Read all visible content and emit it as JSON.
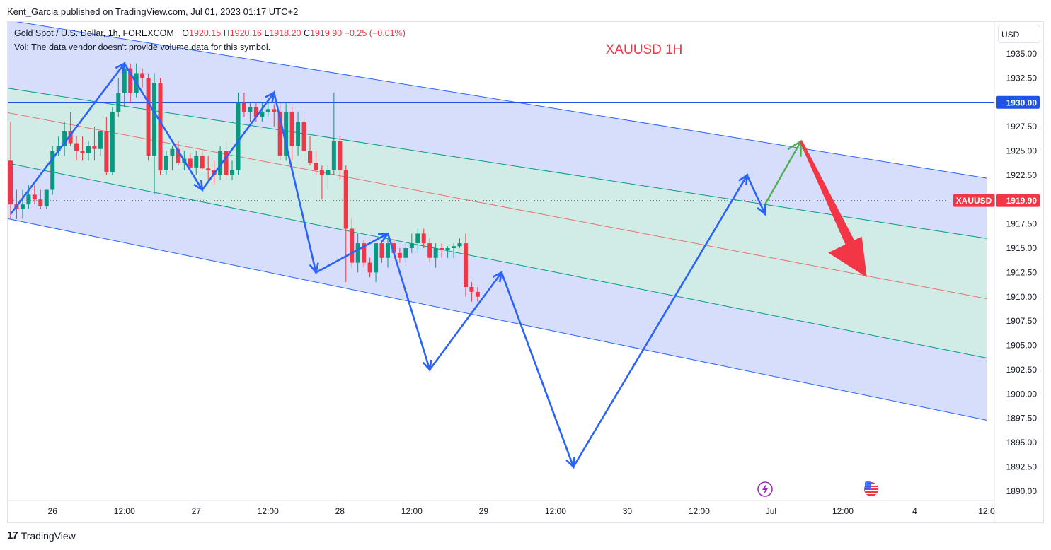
{
  "header": {
    "publisher": "Kent_Garcia published on TradingView.com, Jul 01, 2023 01:17 UTC+2"
  },
  "legend": {
    "symbol": "Gold Spot / U.S. Dollar, 1h, FOREXCOM",
    "o_label": "O",
    "o_value": "1920.15",
    "h_label": "H",
    "h_value": "1920.16",
    "l_label": "L",
    "l_value": "1918.20",
    "c_label": "C",
    "c_value": "1919.90",
    "change": "−0.25 (−0.01%)",
    "volume_note": "Vol: The data vendor doesn't provide volume data for this symbol."
  },
  "currency": "USD",
  "footer": {
    "brand": "TradingView",
    "logo_icon": "tradingview-logo-icon"
  },
  "colors": {
    "up": "#089981",
    "down": "#f23645",
    "channel_outer": "#2962ff",
    "channel_inner_fill": "#d1ece6",
    "channel_outer_fill": "#d4dcfb",
    "median": "#e57373",
    "wave": "#2962ff",
    "target_arrow": "#4caf50",
    "down_arrow": "#f23645",
    "annotation": "#f23645"
  },
  "chart_data": {
    "type": "candlestick",
    "symbol": "XAUUSD",
    "title": "XAUUSD 1H",
    "timeframe": "1h",
    "ylim": [
      1889,
      1938
    ],
    "y_ticks": [
      "1890.00",
      "1892.50",
      "1895.00",
      "1897.50",
      "1900.00",
      "1902.50",
      "1905.00",
      "1907.50",
      "1910.00",
      "1912.50",
      "1915.00",
      "1917.50",
      "1920.00",
      "1922.50",
      "1925.00",
      "1927.50",
      "1930.00",
      "1932.50",
      "1935.00"
    ],
    "x_ticks": [
      "26",
      "12:00",
      "27",
      "12:00",
      "28",
      "12:00",
      "29",
      "12:00",
      "30",
      "12:00",
      "Jul",
      "12:00",
      "4",
      "12:0"
    ],
    "x_tick_index": [
      7,
      19,
      31,
      43,
      55,
      67,
      79,
      91,
      103,
      115,
      127,
      139,
      151,
      163
    ],
    "horizontal_level": {
      "label": "1930.00",
      "value": 1930.0
    },
    "last_price": {
      "symbol": "XAUUSD",
      "label": "1919.90",
      "value": 1919.9
    },
    "channel": {
      "outer_upper": [
        [
          -1,
          1938.5
        ],
        [
          163,
          1922.2
        ]
      ],
      "inner_upper": [
        [
          -1,
          1931.5
        ],
        [
          163,
          1916.0
        ]
      ],
      "median": [
        [
          -1,
          1929.0
        ],
        [
          163,
          1909.8
        ]
      ],
      "inner_lower": [
        [
          -1,
          1923.8
        ],
        [
          163,
          1903.7
        ]
      ],
      "outer_lower": [
        [
          -1,
          1918.1
        ],
        [
          163,
          1897.3
        ]
      ]
    },
    "wave_path": [
      [
        0,
        1918.5
      ],
      [
        19,
        1934.0
      ],
      [
        32,
        1921.0
      ],
      [
        44,
        1931.0
      ],
      [
        51,
        1912.5
      ],
      [
        63,
        1916.5
      ],
      [
        70,
        1902.5
      ],
      [
        82,
        1912.5
      ],
      [
        94,
        1892.5
      ],
      [
        123,
        1922.5
      ],
      [
        126,
        1918.5
      ]
    ],
    "projection_path": [
      [
        126,
        1919.5
      ],
      [
        132,
        1926.0
      ]
    ],
    "down_arrow": [
      [
        132,
        1926.0
      ],
      [
        143,
        1912.0
      ]
    ],
    "candles": [
      {
        "o": 1924.0,
        "h": 1928.0,
        "l": 1918.0,
        "c": 1919.5
      },
      {
        "o": 1919.5,
        "h": 1921.0,
        "l": 1918.0,
        "c": 1919.0
      },
      {
        "o": 1919.0,
        "h": 1921.0,
        "l": 1918.0,
        "c": 1919.5
      },
      {
        "o": 1919.5,
        "h": 1921.5,
        "l": 1919.0,
        "c": 1920.5
      },
      {
        "o": 1920.5,
        "h": 1921.5,
        "l": 1919.5,
        "c": 1920.0
      },
      {
        "o": 1920.0,
        "h": 1921.0,
        "l": 1919.0,
        "c": 1919.3
      },
      {
        "o": 1919.3,
        "h": 1921.0,
        "l": 1919.0,
        "c": 1921.0
      },
      {
        "o": 1921.0,
        "h": 1925.5,
        "l": 1920.5,
        "c": 1925.0
      },
      {
        "o": 1925.0,
        "h": 1926.5,
        "l": 1924.5,
        "c": 1925.5
      },
      {
        "o": 1925.5,
        "h": 1928.0,
        "l": 1924.5,
        "c": 1927.0
      },
      {
        "o": 1927.0,
        "h": 1929.0,
        "l": 1925.5,
        "c": 1925.8
      },
      {
        "o": 1925.8,
        "h": 1926.5,
        "l": 1924.0,
        "c": 1925.0
      },
      {
        "o": 1925.0,
        "h": 1926.5,
        "l": 1924.0,
        "c": 1924.8
      },
      {
        "o": 1924.8,
        "h": 1926.0,
        "l": 1924.0,
        "c": 1925.5
      },
      {
        "o": 1925.5,
        "h": 1927.5,
        "l": 1924.0,
        "c": 1925.2
      },
      {
        "o": 1925.2,
        "h": 1927.0,
        "l": 1924.5,
        "c": 1927.0
      },
      {
        "o": 1927.0,
        "h": 1928.5,
        "l": 1922.5,
        "c": 1922.8
      },
      {
        "o": 1922.8,
        "h": 1929.5,
        "l": 1922.5,
        "c": 1929.0
      },
      {
        "o": 1929.0,
        "h": 1932.5,
        "l": 1928.5,
        "c": 1931.0
      },
      {
        "o": 1931.0,
        "h": 1934.0,
        "l": 1929.5,
        "c": 1933.5
      },
      {
        "o": 1933.5,
        "h": 1934.0,
        "l": 1930.0,
        "c": 1931.0
      },
      {
        "o": 1931.0,
        "h": 1934.0,
        "l": 1930.5,
        "c": 1933.0
      },
      {
        "o": 1933.0,
        "h": 1933.5,
        "l": 1931.5,
        "c": 1932.5
      },
      {
        "o": 1932.5,
        "h": 1933.0,
        "l": 1924.0,
        "c": 1924.5
      },
      {
        "o": 1924.5,
        "h": 1933.0,
        "l": 1920.5,
        "c": 1932.0
      },
      {
        "o": 1932.0,
        "h": 1932.5,
        "l": 1922.5,
        "c": 1923.0
      },
      {
        "o": 1923.0,
        "h": 1925.0,
        "l": 1922.5,
        "c": 1924.5
      },
      {
        "o": 1924.5,
        "h": 1925.5,
        "l": 1923.0,
        "c": 1925.2
      },
      {
        "o": 1925.2,
        "h": 1926.0,
        "l": 1923.5,
        "c": 1923.8
      },
      {
        "o": 1923.8,
        "h": 1925.0,
        "l": 1923.0,
        "c": 1924.2
      },
      {
        "o": 1924.2,
        "h": 1924.8,
        "l": 1923.0,
        "c": 1923.3
      },
      {
        "o": 1923.3,
        "h": 1925.0,
        "l": 1922.5,
        "c": 1924.5
      },
      {
        "o": 1924.5,
        "h": 1925.0,
        "l": 1923.0,
        "c": 1923.2
      },
      {
        "o": 1923.2,
        "h": 1924.5,
        "l": 1922.0,
        "c": 1923.0
      },
      {
        "o": 1923.0,
        "h": 1924.0,
        "l": 1921.5,
        "c": 1922.5
      },
      {
        "o": 1922.5,
        "h": 1925.5,
        "l": 1922.0,
        "c": 1925.0
      },
      {
        "o": 1925.0,
        "h": 1926.0,
        "l": 1922.0,
        "c": 1922.5
      },
      {
        "o": 1922.5,
        "h": 1924.0,
        "l": 1922.0,
        "c": 1923.0
      },
      {
        "o": 1923.0,
        "h": 1931.0,
        "l": 1922.5,
        "c": 1930.0
      },
      {
        "o": 1930.0,
        "h": 1931.0,
        "l": 1928.5,
        "c": 1929.0
      },
      {
        "o": 1929.0,
        "h": 1930.0,
        "l": 1928.0,
        "c": 1929.5
      },
      {
        "o": 1929.5,
        "h": 1930.0,
        "l": 1928.0,
        "c": 1928.5
      },
      {
        "o": 1928.5,
        "h": 1930.0,
        "l": 1928.0,
        "c": 1929.0
      },
      {
        "o": 1929.0,
        "h": 1930.0,
        "l": 1928.5,
        "c": 1929.3
      },
      {
        "o": 1929.3,
        "h": 1929.8,
        "l": 1927.5,
        "c": 1929.0
      },
      {
        "o": 1929.0,
        "h": 1930.0,
        "l": 1924.0,
        "c": 1924.5
      },
      {
        "o": 1924.5,
        "h": 1930.0,
        "l": 1924.0,
        "c": 1929.0
      },
      {
        "o": 1929.0,
        "h": 1929.5,
        "l": 1924.0,
        "c": 1925.5
      },
      {
        "o": 1925.5,
        "h": 1929.0,
        "l": 1924.5,
        "c": 1928.0
      },
      {
        "o": 1928.0,
        "h": 1929.0,
        "l": 1924.0,
        "c": 1925.0
      },
      {
        "o": 1925.0,
        "h": 1926.5,
        "l": 1923.5,
        "c": 1923.8
      },
      {
        "o": 1923.8,
        "h": 1925.0,
        "l": 1922.5,
        "c": 1923.0
      },
      {
        "o": 1923.0,
        "h": 1923.5,
        "l": 1920.0,
        "c": 1922.5
      },
      {
        "o": 1922.5,
        "h": 1923.5,
        "l": 1921.0,
        "c": 1923.0
      },
      {
        "o": 1923.0,
        "h": 1931.0,
        "l": 1922.5,
        "c": 1926.0
      },
      {
        "o": 1926.0,
        "h": 1926.5,
        "l": 1922.0,
        "c": 1923.0
      },
      {
        "o": 1923.0,
        "h": 1923.5,
        "l": 1911.5,
        "c": 1917.0
      },
      {
        "o": 1917.0,
        "h": 1918.0,
        "l": 1913.0,
        "c": 1913.5
      },
      {
        "o": 1913.5,
        "h": 1916.5,
        "l": 1912.5,
        "c": 1915.5
      },
      {
        "o": 1915.5,
        "h": 1915.8,
        "l": 1913.0,
        "c": 1913.5
      },
      {
        "o": 1913.5,
        "h": 1914.0,
        "l": 1912.0,
        "c": 1912.5
      },
      {
        "o": 1912.5,
        "h": 1915.5,
        "l": 1911.5,
        "c": 1915.5
      },
      {
        "o": 1915.5,
        "h": 1915.8,
        "l": 1913.5,
        "c": 1914.0
      },
      {
        "o": 1914.0,
        "h": 1916.0,
        "l": 1913.0,
        "c": 1915.5
      },
      {
        "o": 1915.5,
        "h": 1916.0,
        "l": 1914.0,
        "c": 1914.5
      },
      {
        "o": 1914.5,
        "h": 1915.0,
        "l": 1913.5,
        "c": 1914.0
      },
      {
        "o": 1914.0,
        "h": 1915.5,
        "l": 1913.5,
        "c": 1915.0
      },
      {
        "o": 1915.0,
        "h": 1916.5,
        "l": 1914.5,
        "c": 1915.5
      },
      {
        "o": 1915.5,
        "h": 1917.0,
        "l": 1914.5,
        "c": 1916.5
      },
      {
        "o": 1916.5,
        "h": 1917.0,
        "l": 1915.0,
        "c": 1915.5
      },
      {
        "o": 1915.5,
        "h": 1916.0,
        "l": 1913.5,
        "c": 1914.0
      },
      {
        "o": 1914.0,
        "h": 1915.5,
        "l": 1913.0,
        "c": 1915.0
      },
      {
        "o": 1915.0,
        "h": 1915.5,
        "l": 1914.0,
        "c": 1914.8
      },
      {
        "o": 1914.8,
        "h": 1915.2,
        "l": 1914.0,
        "c": 1915.0
      },
      {
        "o": 1915.0,
        "h": 1915.5,
        "l": 1914.0,
        "c": 1915.2
      },
      {
        "o": 1915.2,
        "h": 1916.0,
        "l": 1915.0,
        "c": 1915.5
      },
      {
        "o": 1915.5,
        "h": 1916.5,
        "l": 1910.0,
        "c": 1911.0
      },
      {
        "o": 1911.0,
        "h": 1911.5,
        "l": 1909.5,
        "c": 1910.5
      },
      {
        "o": 1910.5,
        "h": 1911.0,
        "l": 1909.5,
        "c": 1910.0
      }
    ]
  }
}
